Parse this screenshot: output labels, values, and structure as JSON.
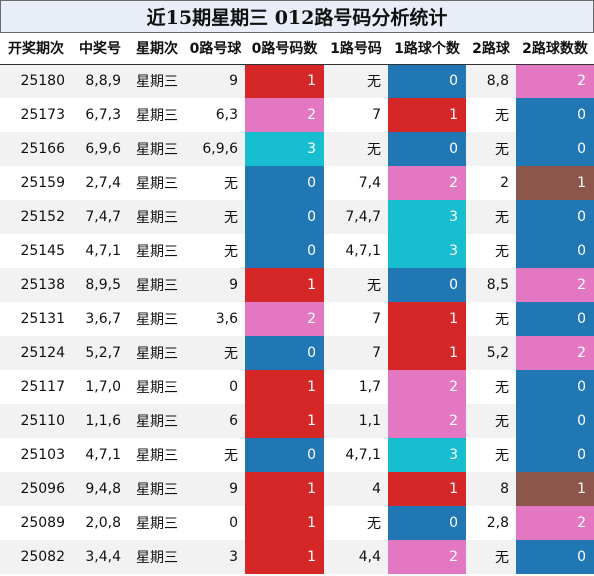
{
  "title": "近15期星期三 012路号码分析统计",
  "headers": [
    "开奖期次",
    "中奖号",
    "星期次",
    "0路号球",
    "0路号码数",
    "1路号码",
    "1路球个数",
    "2路球",
    "2路球数数"
  ],
  "colors": {
    "0": "#2077b4",
    "1": "#d62728",
    "2": "#e377c2",
    "3": "#17becf",
    "1_brown": "#8c564b"
  },
  "rows": [
    {
      "period": "25180",
      "numbers": "8,8,9",
      "weekday": "星期三",
      "r0": "9",
      "r0_count": "1",
      "r1": "无",
      "r1_count": "0",
      "r2": "8,8",
      "r2_count": "2"
    },
    {
      "period": "25173",
      "numbers": "6,7,3",
      "weekday": "星期三",
      "r0": "6,3",
      "r0_count": "2",
      "r1": "7",
      "r1_count": "1",
      "r2": "无",
      "r2_count": "0"
    },
    {
      "period": "25166",
      "numbers": "6,9,6",
      "weekday": "星期三",
      "r0": "6,9,6",
      "r0_count": "3",
      "r1": "无",
      "r1_count": "0",
      "r2": "无",
      "r2_count": "0"
    },
    {
      "period": "25159",
      "numbers": "2,7,4",
      "weekday": "星期三",
      "r0": "无",
      "r0_count": "0",
      "r1": "7,4",
      "r1_count": "2",
      "r2": "2",
      "r2_count": "1"
    },
    {
      "period": "25152",
      "numbers": "7,4,7",
      "weekday": "星期三",
      "r0": "无",
      "r0_count": "0",
      "r1": "7,4,7",
      "r1_count": "3",
      "r2": "无",
      "r2_count": "0"
    },
    {
      "period": "25145",
      "numbers": "4,7,1",
      "weekday": "星期三",
      "r0": "无",
      "r0_count": "0",
      "r1": "4,7,1",
      "r1_count": "3",
      "r2": "无",
      "r2_count": "0"
    },
    {
      "period": "25138",
      "numbers": "8,9,5",
      "weekday": "星期三",
      "r0": "9",
      "r0_count": "1",
      "r1": "无",
      "r1_count": "0",
      "r2": "8,5",
      "r2_count": "2"
    },
    {
      "period": "25131",
      "numbers": "3,6,7",
      "weekday": "星期三",
      "r0": "3,6",
      "r0_count": "2",
      "r1": "7",
      "r1_count": "1",
      "r2": "无",
      "r2_count": "0"
    },
    {
      "period": "25124",
      "numbers": "5,2,7",
      "weekday": "星期三",
      "r0": "无",
      "r0_count": "0",
      "r1": "7",
      "r1_count": "1",
      "r2": "5,2",
      "r2_count": "2"
    },
    {
      "period": "25117",
      "numbers": "1,7,0",
      "weekday": "星期三",
      "r0": "0",
      "r0_count": "1",
      "r1": "1,7",
      "r1_count": "2",
      "r2": "无",
      "r2_count": "0"
    },
    {
      "period": "25110",
      "numbers": "1,1,6",
      "weekday": "星期三",
      "r0": "6",
      "r0_count": "1",
      "r1": "1,1",
      "r1_count": "2",
      "r2": "无",
      "r2_count": "0"
    },
    {
      "period": "25103",
      "numbers": "4,7,1",
      "weekday": "星期三",
      "r0": "无",
      "r0_count": "0",
      "r1": "4,7,1",
      "r1_count": "3",
      "r2": "无",
      "r2_count": "0"
    },
    {
      "period": "25096",
      "numbers": "9,4,8",
      "weekday": "星期三",
      "r0": "9",
      "r0_count": "1",
      "r1": "4",
      "r1_count": "1",
      "r2": "8",
      "r2_count": "1"
    },
    {
      "period": "25089",
      "numbers": "2,0,8",
      "weekday": "星期三",
      "r0": "0",
      "r0_count": "1",
      "r1": "无",
      "r1_count": "0",
      "r2": "2,8",
      "r2_count": "2"
    },
    {
      "period": "25082",
      "numbers": "3,4,4",
      "weekday": "星期三",
      "r0": "3",
      "r0_count": "1",
      "r1": "4,4",
      "r1_count": "2",
      "r2": "无",
      "r2_count": "0"
    }
  ]
}
